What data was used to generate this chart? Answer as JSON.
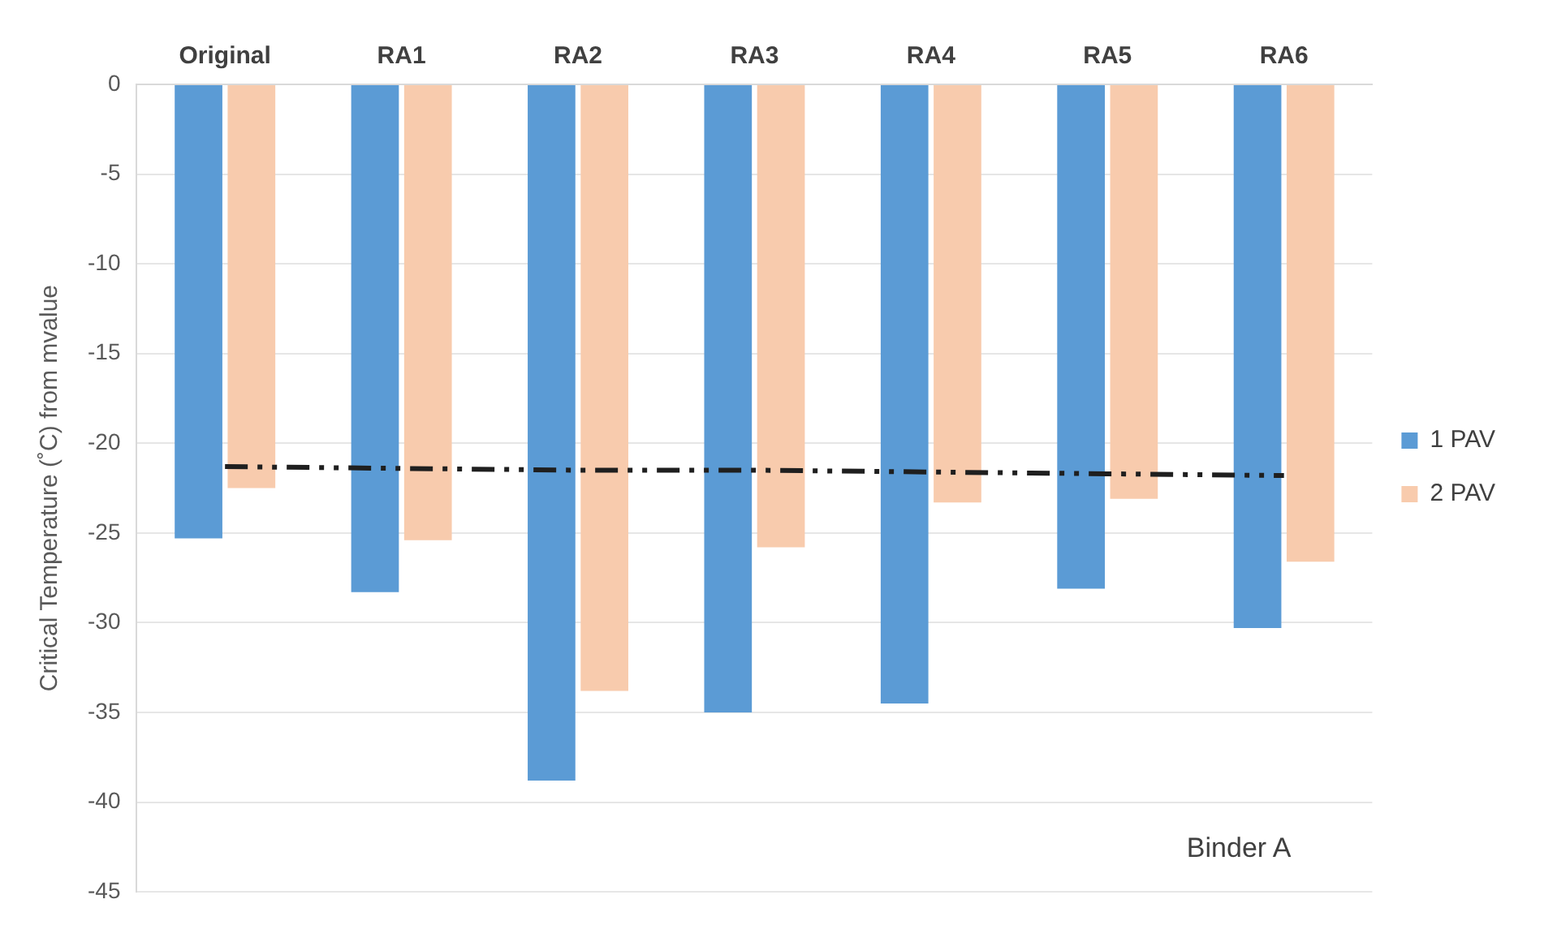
{
  "chart_data": {
    "type": "bar",
    "ylabel": "Critical Temperature (˚C) from mvalue",
    "categories": [
      "Original",
      "RA1",
      "RA2",
      "RA3",
      "RA4",
      "RA5",
      "RA6"
    ],
    "series": [
      {
        "name": "1 PAV",
        "color": "#5b9bd5",
        "values": [
          -25.3,
          -28.3,
          -38.8,
          -35,
          -34.5,
          -28.1,
          -30.3
        ]
      },
      {
        "name": "2 PAV",
        "color": "#f8cbad",
        "values": [
          -22.5,
          -25.4,
          -33.8,
          -25.8,
          -23.3,
          -23.1,
          -26.6
        ]
      },
      {
        "type": "line",
        "color": "#1f1f1f",
        "line_style": "dashed",
        "values": [
          -21.3,
          -21.4,
          -21.5,
          -21.5,
          -21.6,
          -21.7,
          -21.8
        ]
      }
    ],
    "ylim": [
      -45,
      0
    ],
    "yticks": [
      0,
      -5,
      -10,
      -15,
      -20,
      -25,
      -30,
      -35,
      -40,
      -45
    ],
    "grid": "y",
    "legend": "right",
    "marker": "none",
    "annotations": [
      "Binder A"
    ]
  }
}
